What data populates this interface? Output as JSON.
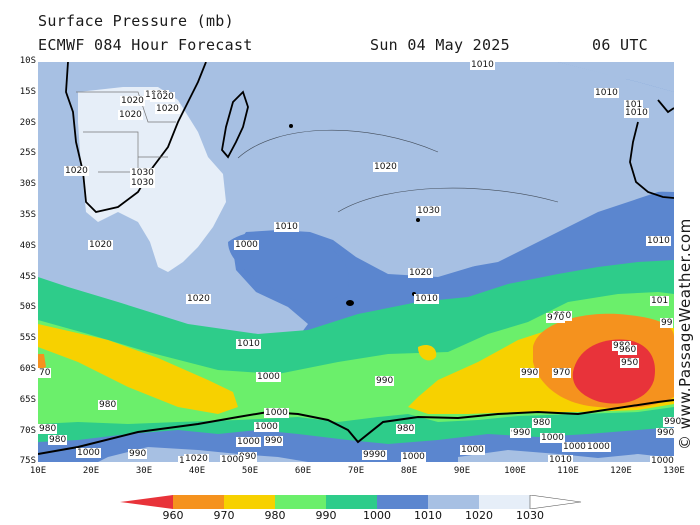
{
  "header": {
    "title": "Surface Pressure (mb)",
    "model": "ECMWF 084 Hour Forecast",
    "date": "Sun 04 May 2025",
    "time": "06 UTC"
  },
  "credit": "© www.PassageWeather.com",
  "axes": {
    "lat_labels": [
      "10S",
      "15S",
      "20S",
      "25S",
      "30S",
      "35S",
      "40S",
      "45S",
      "50S",
      "55S",
      "60S",
      "65S",
      "70S",
      "75S"
    ],
    "lon_labels": [
      "10E",
      "20E",
      "30E",
      "40E",
      "50E",
      "60E",
      "70E",
      "80E",
      "90E",
      "100E",
      "110E",
      "120E",
      "130E"
    ]
  },
  "colorbar": {
    "labels": [
      "960",
      "970",
      "980",
      "990",
      "1000",
      "1010",
      "1020",
      "1030"
    ],
    "colors": [
      "#e8333a",
      "#f5921e",
      "#f7d100",
      "#6bef6b",
      "#2ecc8a",
      "#5b86cf",
      "#a7c0e3",
      "#e6eef8",
      "#ffffff"
    ]
  },
  "map": {
    "colors": {
      "p1030": "#e6eef8",
      "p1020": "#a7c0e3",
      "p1010": "#5b86cf",
      "p1000": "#2ecc8a",
      "p990": "#6bef6b",
      "p980": "#f7d100",
      "p970": "#f5921e",
      "p960": "#e8333a",
      "coast": "#000000"
    },
    "isobar_labels": [
      {
        "text": "1010"
      },
      {
        "text": "1020"
      },
      {
        "text": "1020"
      },
      {
        "text": "1020"
      },
      {
        "text": "1020"
      },
      {
        "text": "1020"
      },
      {
        "text": "1020"
      },
      {
        "text": "1030"
      },
      {
        "text": "1030"
      },
      {
        "text": "1020"
      },
      {
        "text": "1020"
      },
      {
        "text": "1020"
      },
      {
        "text": "1030"
      },
      {
        "text": "1010"
      },
      {
        "text": "1000"
      },
      {
        "text": "1020"
      },
      {
        "text": "1010"
      },
      {
        "text": "1010"
      },
      {
        "text": "1010"
      },
      {
        "text": "1010"
      },
      {
        "text": "101"
      },
      {
        "text": "1010"
      },
      {
        "text": "990"
      },
      {
        "text": "990"
      },
      {
        "text": "970"
      },
      {
        "text": "970"
      },
      {
        "text": "980"
      },
      {
        "text": "960"
      },
      {
        "text": "950"
      },
      {
        "text": "990"
      },
      {
        "text": "1000"
      },
      {
        "text": "980"
      },
      {
        "text": "980"
      },
      {
        "text": "990"
      },
      {
        "text": "980"
      },
      {
        "text": "990"
      },
      {
        "text": "1000"
      },
      {
        "text": "1000"
      },
      {
        "text": "990"
      },
      {
        "text": "980"
      },
      {
        "text": "990"
      },
      {
        "text": "1000"
      },
      {
        "text": "1000"
      },
      {
        "text": "1000"
      },
      {
        "text": "1000"
      },
      {
        "text": "1000"
      },
      {
        "text": "9990"
      },
      {
        "text": "1000"
      },
      {
        "text": "1000"
      },
      {
        "text": "980"
      },
      {
        "text": "990"
      },
      {
        "text": "1000"
      },
      {
        "text": "1000"
      },
      {
        "text": "1010"
      },
      {
        "text": "1000"
      },
      {
        "text": "990"
      },
      {
        "text": "990"
      },
      {
        "text": "70"
      },
      {
        "text": "1020"
      },
      {
        "text": "101"
      },
      {
        "text": "99"
      }
    ]
  }
}
